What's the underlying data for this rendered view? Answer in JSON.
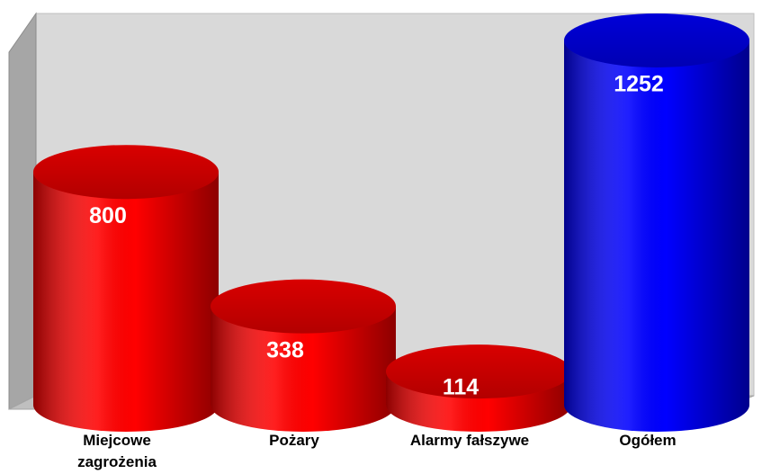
{
  "chart_data": {
    "type": "bar",
    "categories": [
      "Miejcowe\nzagrożenia",
      "Pożary",
      "Alarmy fałszywe",
      "Ogółem"
    ],
    "values": [
      800,
      338,
      114,
      1252
    ],
    "colors": [
      "#ff0000",
      "#ff0000",
      "#ff0000",
      "#0000ff"
    ]
  }
}
